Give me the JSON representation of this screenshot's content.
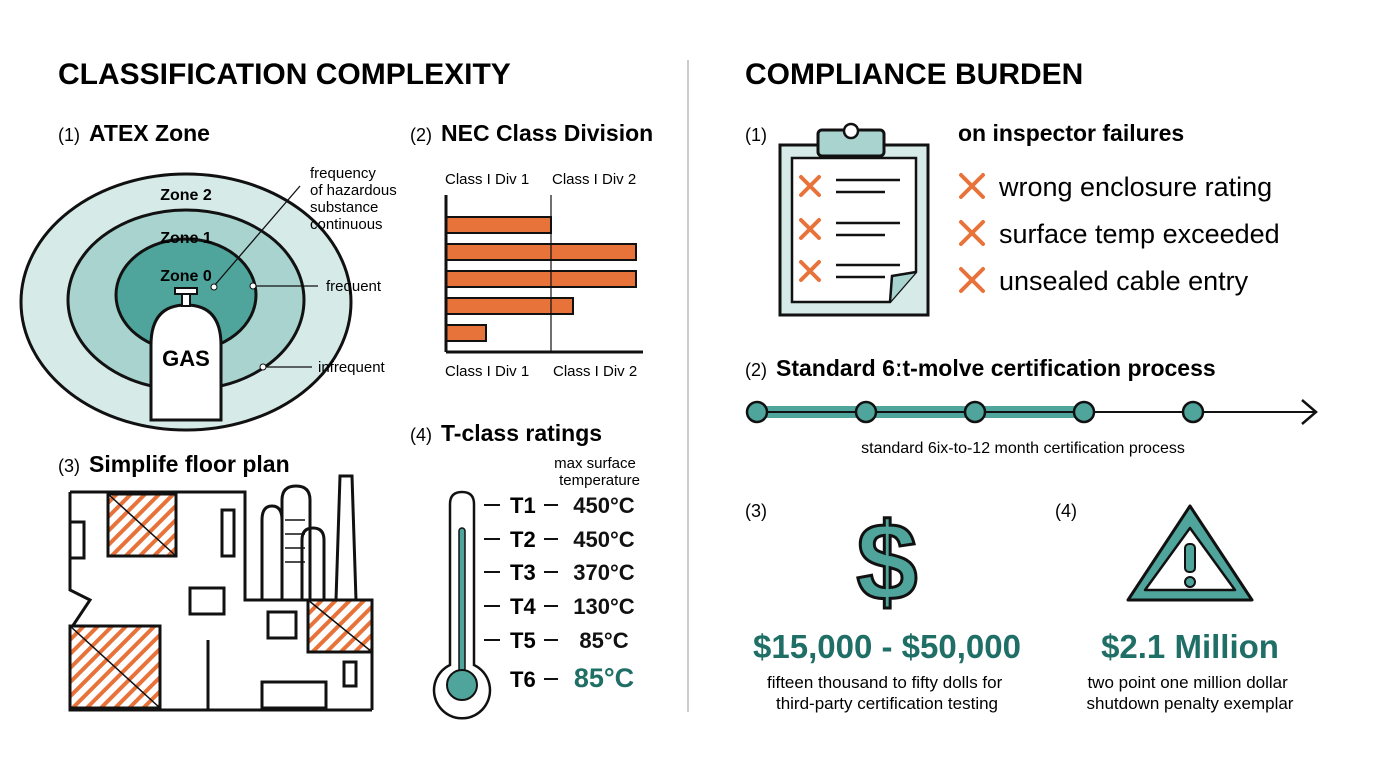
{
  "left": {
    "title": "CLASSIFICATION COMPLEXITY",
    "atex": {
      "num": "(1)",
      "title": "ATEX Zone",
      "zones": [
        "Zone 2",
        "Zone 1",
        "Zone 0"
      ],
      "gas": "GAS",
      "annot_continuous": [
        "frequency",
        "of hazardous",
        "substance",
        "continuous"
      ],
      "annot_frequent": "frequent",
      "annot_infrequent": "infrequent"
    },
    "nec": {
      "num": "(2)",
      "title": "NEC Class Division",
      "top_labels": [
        "Class I Div 1",
        "Class I Div 2"
      ],
      "bottom_labels": [
        "Class I Div 1",
        "Class I Div 2"
      ]
    },
    "floor": {
      "num": "(3)",
      "title": "Simplife floor plan"
    },
    "tclass": {
      "num": "(4)",
      "title": "T-class ratings",
      "subtitle": [
        "max surface",
        "temperature"
      ],
      "rows": [
        {
          "cls": "T1",
          "temp": "450°C"
        },
        {
          "cls": "T2",
          "temp": "450°C"
        },
        {
          "cls": "T3",
          "temp": "370°C"
        },
        {
          "cls": "T4",
          "temp": "130°C"
        },
        {
          "cls": "T5",
          "temp": "85°C"
        },
        {
          "cls": "T6",
          "temp": "85°C"
        }
      ]
    }
  },
  "right": {
    "title": "COMPLIANCE BURDEN",
    "failures": {
      "num": "(1)",
      "title": "on inspector failures",
      "items": [
        "wrong enclosure rating",
        "surface temp exceeded",
        "unsealed cable entry"
      ]
    },
    "process": {
      "num": "(2)",
      "title": "Standard 6ːt-molve certification process",
      "caption": "standard 6ix-to-12 month certification process",
      "steps_total": 5,
      "steps_completed": 4
    },
    "cost": {
      "num": "(3)",
      "value": "$15,000 - $50,000",
      "caption": [
        "fifteen thousand to fifty dolls for",
        "third-party certification testing"
      ]
    },
    "penalty": {
      "num": "(4)",
      "value": "$2.1 Million",
      "caption": [
        "two point one million dollar",
        "shutdown penalty exemplar"
      ]
    }
  },
  "colors": {
    "teal": "#4fa59c",
    "teal_dark": "#1f6f67",
    "teal_light": "#d6ebe8",
    "teal_mid": "#a9d3ce",
    "orange": "#e8733a"
  }
}
